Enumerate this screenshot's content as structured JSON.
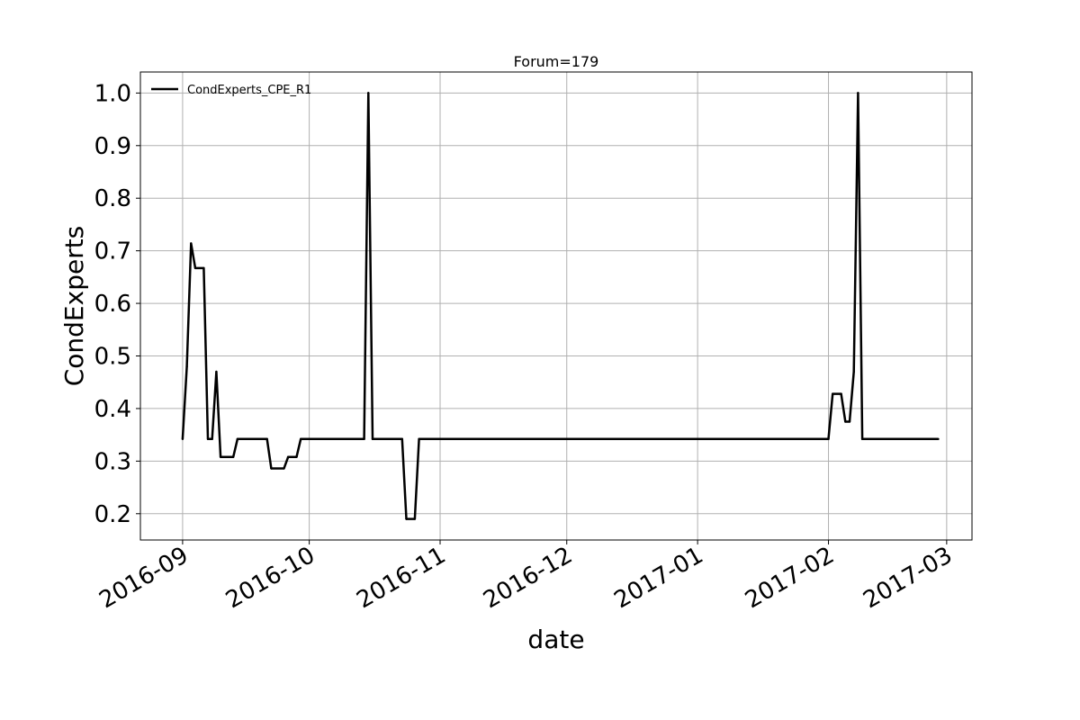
{
  "chart_data": {
    "type": "line",
    "title": "Forum=179",
    "xlabel": "date",
    "ylabel": "CondExperts",
    "x_axis_type": "date",
    "xlim": [
      "2016-08-22",
      "2017-03-07"
    ],
    "ylim": [
      0.15,
      1.04
    ],
    "xticks": [
      {
        "date": "2016-09-01",
        "label": "2016-09"
      },
      {
        "date": "2016-10-01",
        "label": "2016-10"
      },
      {
        "date": "2016-11-01",
        "label": "2016-11"
      },
      {
        "date": "2016-12-01",
        "label": "2016-12"
      },
      {
        "date": "2017-01-01",
        "label": "2017-01"
      },
      {
        "date": "2017-02-01",
        "label": "2017-02"
      },
      {
        "date": "2017-03-01",
        "label": "2017-03"
      }
    ],
    "yticks": [
      {
        "value": 0.2,
        "label": "0.2"
      },
      {
        "value": 0.3,
        "label": "0.3"
      },
      {
        "value": 0.4,
        "label": "0.4"
      },
      {
        "value": 0.5,
        "label": "0.5"
      },
      {
        "value": 0.6,
        "label": "0.6"
      },
      {
        "value": 0.7,
        "label": "0.7"
      },
      {
        "value": 0.8,
        "label": "0.8"
      },
      {
        "value": 0.9,
        "label": "0.9"
      },
      {
        "value": 1.0,
        "label": "1.0"
      }
    ],
    "grid": true,
    "legend_position": "top-left",
    "series": [
      {
        "name": "CondExperts_CPE_R1",
        "color": "#000000",
        "points": [
          [
            "2016-09-01",
            0.342
          ],
          [
            "2016-09-02",
            0.48
          ],
          [
            "2016-09-03",
            0.714
          ],
          [
            "2016-09-04",
            0.667
          ],
          [
            "2016-09-06",
            0.667
          ],
          [
            "2016-09-07",
            0.342
          ],
          [
            "2016-09-08",
            0.342
          ],
          [
            "2016-09-09",
            0.47
          ],
          [
            "2016-09-10",
            0.308
          ],
          [
            "2016-09-13",
            0.308
          ],
          [
            "2016-09-14",
            0.342
          ],
          [
            "2016-09-21",
            0.342
          ],
          [
            "2016-09-22",
            0.286
          ],
          [
            "2016-09-25",
            0.286
          ],
          [
            "2016-09-26",
            0.308
          ],
          [
            "2016-09-28",
            0.308
          ],
          [
            "2016-09-29",
            0.342
          ],
          [
            "2016-10-14",
            0.342
          ],
          [
            "2016-10-15",
            1.0
          ],
          [
            "2016-10-16",
            0.342
          ],
          [
            "2016-10-23",
            0.342
          ],
          [
            "2016-10-24",
            0.19
          ],
          [
            "2016-10-26",
            0.19
          ],
          [
            "2016-10-27",
            0.342
          ],
          [
            "2017-02-01",
            0.342
          ],
          [
            "2017-02-02",
            0.428
          ],
          [
            "2017-02-04",
            0.428
          ],
          [
            "2017-02-05",
            0.375
          ],
          [
            "2017-02-06",
            0.375
          ],
          [
            "2017-02-07",
            0.47
          ],
          [
            "2017-02-08",
            1.0
          ],
          [
            "2017-02-09",
            0.342
          ],
          [
            "2017-02-27",
            0.342
          ]
        ]
      }
    ]
  }
}
